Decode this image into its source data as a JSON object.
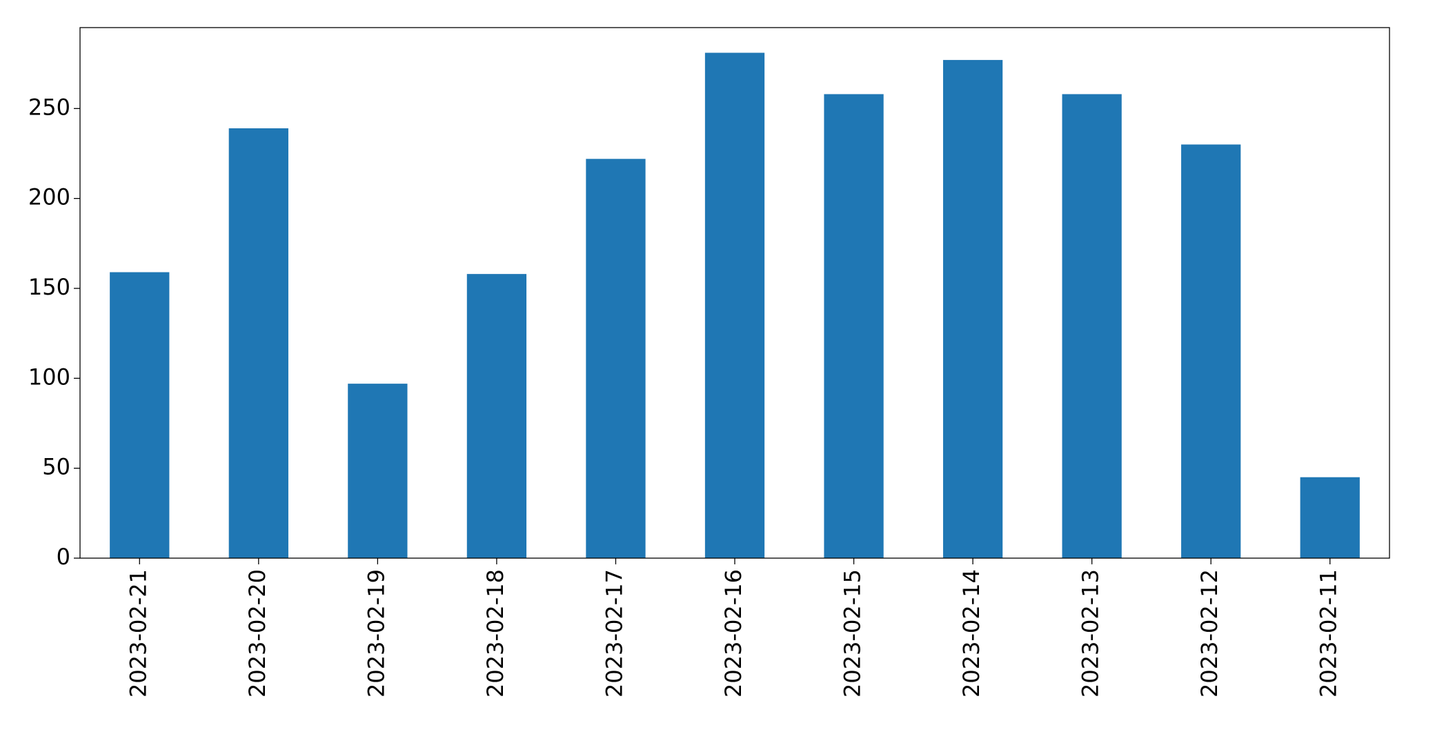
{
  "chart_data": {
    "type": "bar",
    "categories": [
      "2023-02-21",
      "2023-02-20",
      "2023-02-19",
      "2023-02-18",
      "2023-02-17",
      "2023-02-16",
      "2023-02-15",
      "2023-02-14",
      "2023-02-13",
      "2023-02-12",
      "2023-02-11"
    ],
    "values": [
      159,
      239,
      97,
      158,
      222,
      281,
      258,
      277,
      258,
      230,
      45
    ],
    "color": "#1f77b4",
    "ylim": [
      0,
      295
    ],
    "yticks": [
      0,
      50,
      100,
      150,
      200,
      250
    ],
    "grid": false
  }
}
